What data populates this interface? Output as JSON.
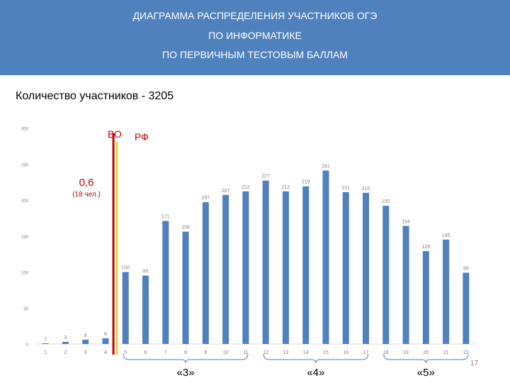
{
  "header": {
    "title_lines": [
      "ДИАГРАММА РАСПРЕДЕЛЕНИЯ УЧАСТНИКОВ ОГЭ",
      "ПО ИНФОРМАТИКЕ",
      "ПО ПЕРВИЧНЫМ ТЕСТОВЫМ БАЛЛАМ"
    ]
  },
  "participants_label": "Количество участников - 3205",
  "page_number": "17",
  "colors": {
    "header": "#4f81bd",
    "bar": "#4f81bd",
    "red_line": "#c00000",
    "yellow_line": "#f0c000",
    "bracket": "#4f81bd"
  },
  "chart_data": {
    "type": "bar",
    "categories": [
      "1",
      "2",
      "3",
      "4",
      "5",
      "6",
      "7",
      "8",
      "9",
      "10",
      "11",
      "12",
      "13",
      "14",
      "15",
      "16",
      "17",
      "18",
      "19",
      "20",
      "21",
      "22"
    ],
    "values": [
      1,
      3,
      6,
      8,
      100,
      95,
      171,
      156,
      197,
      207,
      212,
      227,
      212,
      219,
      241,
      211,
      210,
      192,
      164,
      129,
      145,
      99
    ],
    "y_ticks": [
      "0",
      "50",
      "100",
      "150",
      "200",
      "250",
      "300"
    ],
    "ylim": [
      0,
      300
    ],
    "grid": false,
    "annotations": {
      "vo_label": "ВО",
      "rf_label": "РФ",
      "threshold_value": "0,6",
      "threshold_people": "(18 чел.)"
    },
    "grade_groups": [
      {
        "label": "«3»",
        "from": "5",
        "to": "11"
      },
      {
        "label": "«4»",
        "from": "12",
        "to": "17"
      },
      {
        "label": "«5»",
        "from": "18",
        "to": "22"
      }
    ]
  }
}
